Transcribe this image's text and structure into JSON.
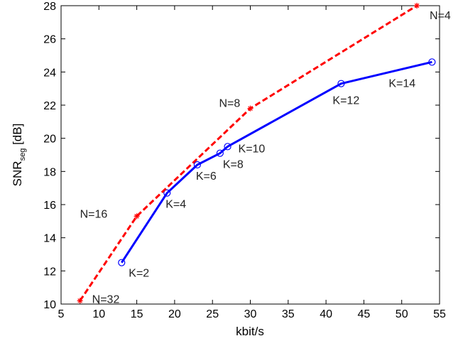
{
  "chart_data": {
    "type": "line",
    "xlabel": "kbit/s",
    "ylabel": "SNR",
    "ylabel_sub": "seg",
    "ylabel_suffix": " [dB]",
    "xlim": [
      5,
      55
    ],
    "ylim": [
      10,
      28
    ],
    "xticks": [
      5,
      10,
      15,
      20,
      25,
      30,
      35,
      40,
      45,
      50,
      55
    ],
    "yticks": [
      10,
      12,
      14,
      16,
      18,
      20,
      22,
      24,
      26,
      28
    ],
    "grid": false,
    "series": [
      {
        "color": "#0000ff",
        "line_style": "solid",
        "marker": "circle",
        "x": [
          13,
          19,
          23,
          26,
          27,
          42,
          54
        ],
        "y": [
          12.5,
          16.7,
          18.4,
          19.1,
          19.5,
          23.3,
          24.6
        ],
        "labels": [
          "K=2",
          "K=4",
          "K=6",
          "K=8",
          "K=10",
          "K=12",
          "K=14"
        ]
      },
      {
        "color": "#ff0000",
        "line_style": "dashed",
        "marker": "asterisk",
        "x": [
          7.5,
          15,
          30,
          52
        ],
        "y": [
          10.2,
          15.3,
          21.8,
          28
        ],
        "labels": [
          "N=32",
          "N=16",
          "N=8",
          "N=4"
        ]
      }
    ]
  }
}
